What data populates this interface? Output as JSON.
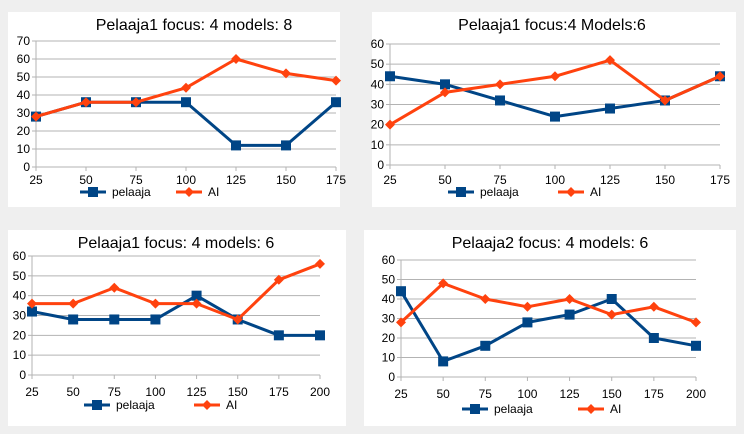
{
  "colors": {
    "pelaaja": "#004586",
    "AI": "#ff420e",
    "grid": "#b3b3b3",
    "axis": "#b3b3b3"
  },
  "chart_data": [
    {
      "type": "line",
      "title": "Pelaaja1 focus: 4 models: 8",
      "categories": [
        "25",
        "50",
        "75",
        "100",
        "125",
        "150",
        "175"
      ],
      "ylim": [
        0,
        70
      ],
      "ytick_step": 10,
      "legend_position": "bottom",
      "grid": true,
      "series": [
        {
          "name": "pelaaja",
          "marker": "square",
          "values": [
            28,
            36,
            36,
            36,
            12,
            12,
            36
          ]
        },
        {
          "name": "AI",
          "marker": "diamond",
          "values": [
            28,
            36,
            36,
            44,
            60,
            52,
            48
          ]
        }
      ]
    },
    {
      "type": "line",
      "title": "Pelaaja1 focus:4 Models:6",
      "categories": [
        "25",
        "50",
        "75",
        "100",
        "125",
        "150",
        "175"
      ],
      "ylim": [
        0,
        60
      ],
      "ytick_step": 10,
      "legend_position": "bottom",
      "grid": true,
      "series": [
        {
          "name": "pelaaja",
          "marker": "square",
          "values": [
            44,
            40,
            32,
            24,
            28,
            32,
            44
          ]
        },
        {
          "name": "AI",
          "marker": "diamond",
          "values": [
            20,
            36,
            40,
            44,
            52,
            32,
            44
          ]
        }
      ]
    },
    {
      "type": "line",
      "title": "Pelaaja1 focus: 4 models: 6",
      "categories": [
        "25",
        "50",
        "75",
        "100",
        "125",
        "150",
        "175",
        "200"
      ],
      "ylim": [
        0,
        60
      ],
      "ytick_step": 10,
      "legend_position": "bottom",
      "grid": true,
      "series": [
        {
          "name": "pelaaja",
          "marker": "square",
          "values": [
            32,
            28,
            28,
            28,
            40,
            28,
            20,
            20
          ]
        },
        {
          "name": "AI",
          "marker": "diamond",
          "values": [
            36,
            36,
            44,
            36,
            36,
            28,
            48,
            56
          ]
        }
      ]
    },
    {
      "type": "line",
      "title": "Pelaaja2 focus: 4 models: 6",
      "categories": [
        "25",
        "50",
        "75",
        "100",
        "125",
        "150",
        "175",
        "200"
      ],
      "ylim": [
        0,
        60
      ],
      "ytick_step": 10,
      "legend_position": "bottom",
      "grid": true,
      "series": [
        {
          "name": "pelaaja",
          "marker": "square",
          "values": [
            44,
            8,
            16,
            28,
            32,
            40,
            20,
            16
          ]
        },
        {
          "name": "AI",
          "marker": "diamond",
          "values": [
            28,
            48,
            40,
            36,
            40,
            32,
            36,
            28
          ]
        }
      ]
    }
  ]
}
